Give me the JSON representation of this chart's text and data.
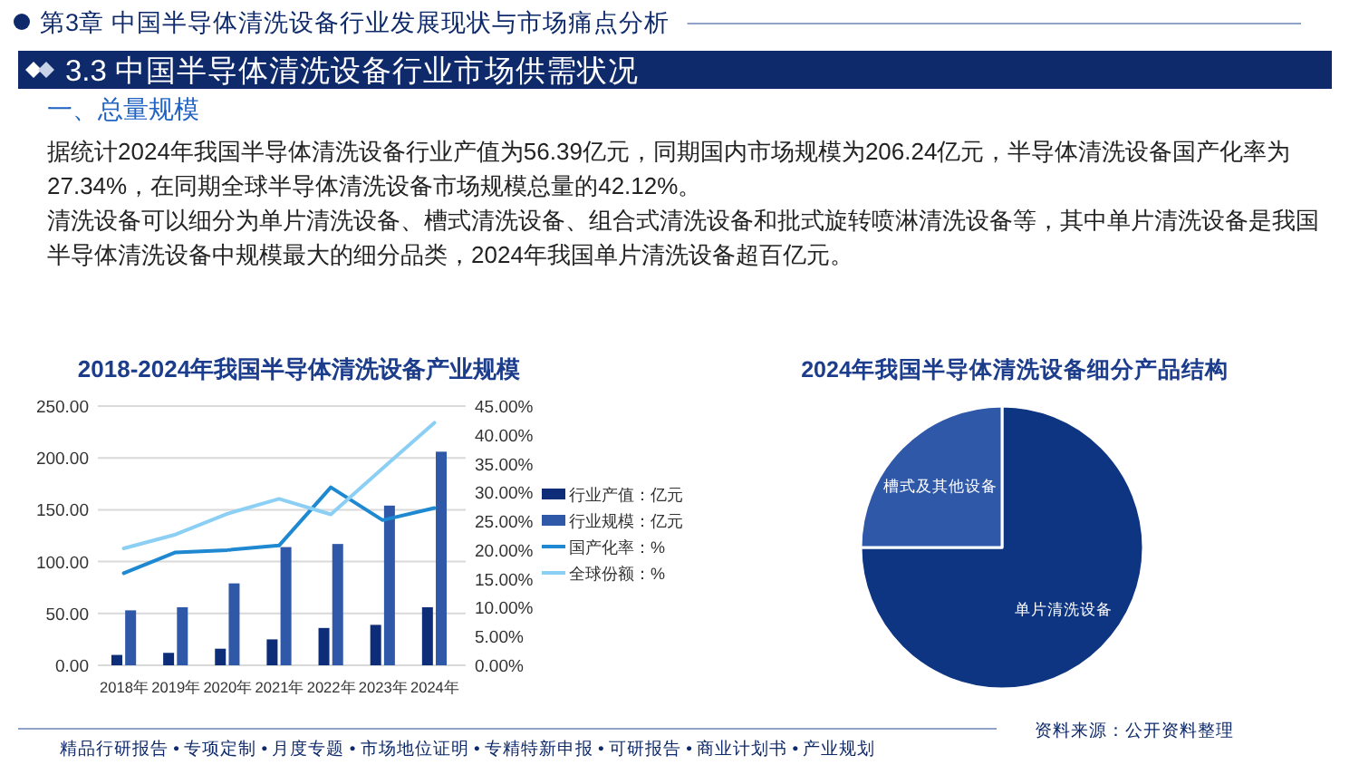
{
  "chart_data": [
    {
      "type": "other",
      "title": "3.3 中国半导体清洗设备行业市场供需状况",
      "annotations": [
        "第3章 中国半导体清洗设备行业发展现状与市场痛点分析",
        "一、总量规模",
        "据统计2024年我国半导体清洗设备行业产值为56.39亿元，同期国内市场规模为206.24亿元，半导体清洗设备国产化率为27.34%，在同期全球半导体清洗设备市场规模总量的42.12%。",
        "清洗设备可以细分为单片清洗设备、槽式清洗设备、组合式清洗设备和批式旋转喷淋清洗设备等，其中单片清洗设备是我国半导体清洗设备中规模最大的细分品类，2024年我国单片清洗设备超百亿元。"
      ]
    },
    {
      "type": "bar",
      "title": "2018-2024年我国半导体清洗设备产业规模",
      "categories": [
        "2018年",
        "2019年",
        "2020年",
        "2021年",
        "2022年",
        "2023年",
        "2024年"
      ],
      "series": [
        {
          "name": "行业产值：亿元",
          "type": "bar",
          "color": "#0e2d78",
          "values": [
            10,
            12,
            16,
            25,
            36,
            39,
            56
          ]
        },
        {
          "name": "行业规模：亿元",
          "type": "bar",
          "color": "#2f58a8",
          "values": [
            53,
            56,
            79,
            114,
            117,
            154,
            206
          ]
        },
        {
          "name": "国产化率：%",
          "type": "line",
          "axis": "y2",
          "color": "#1e88d0",
          "values": [
            16.0,
            19.6,
            20.0,
            20.8,
            30.9,
            25.2,
            27.3
          ]
        },
        {
          "name": "全球份额：%",
          "type": "line",
          "axis": "y2",
          "color": "#8ccff5",
          "values": [
            20.3,
            22.7,
            26.3,
            28.9,
            26.2,
            34.2,
            42.1
          ]
        }
      ],
      "ylim": [
        0,
        250
      ],
      "yticks": [
        {
          "value": 0,
          "label": "0.00"
        },
        {
          "value": 50,
          "label": "50.00"
        },
        {
          "value": 100,
          "label": "100.00"
        },
        {
          "value": 150,
          "label": "150.00"
        },
        {
          "value": 200,
          "label": "200.00"
        },
        {
          "value": 250,
          "label": "250.00"
        }
      ],
      "y2lim": [
        0,
        45
      ],
      "y2ticks": [
        {
          "value": 0,
          "label": "0.00%"
        },
        {
          "value": 5,
          "label": "5.00%"
        },
        {
          "value": 10,
          "label": "10.00%"
        },
        {
          "value": 15,
          "label": "15.00%"
        },
        {
          "value": 20,
          "label": "20.00%"
        },
        {
          "value": 25,
          "label": "25.00%"
        },
        {
          "value": 30,
          "label": "30.00%"
        },
        {
          "value": 35,
          "label": "35.00%"
        },
        {
          "value": 40,
          "label": "40.00%"
        },
        {
          "value": 45,
          "label": "45.00%"
        }
      ],
      "grid": "y",
      "legend": "right"
    },
    {
      "type": "pie",
      "title": "2024年我国半导体清洗设备细分产品结构",
      "categories": [
        "单片清洗设备",
        "槽式及其他设备"
      ],
      "values": [
        75,
        25
      ],
      "colors": [
        "#0e3582",
        "#2f58a8"
      ]
    },
    {
      "type": "other",
      "annotations": [
        "精品行研报告 • 专项定制 • 月度专题 • 市场地位证明 • 专精特新申报 • 可研报告 • 商业计划书 • 产业规划",
        "资料来源：公开资料整理"
      ]
    }
  ]
}
